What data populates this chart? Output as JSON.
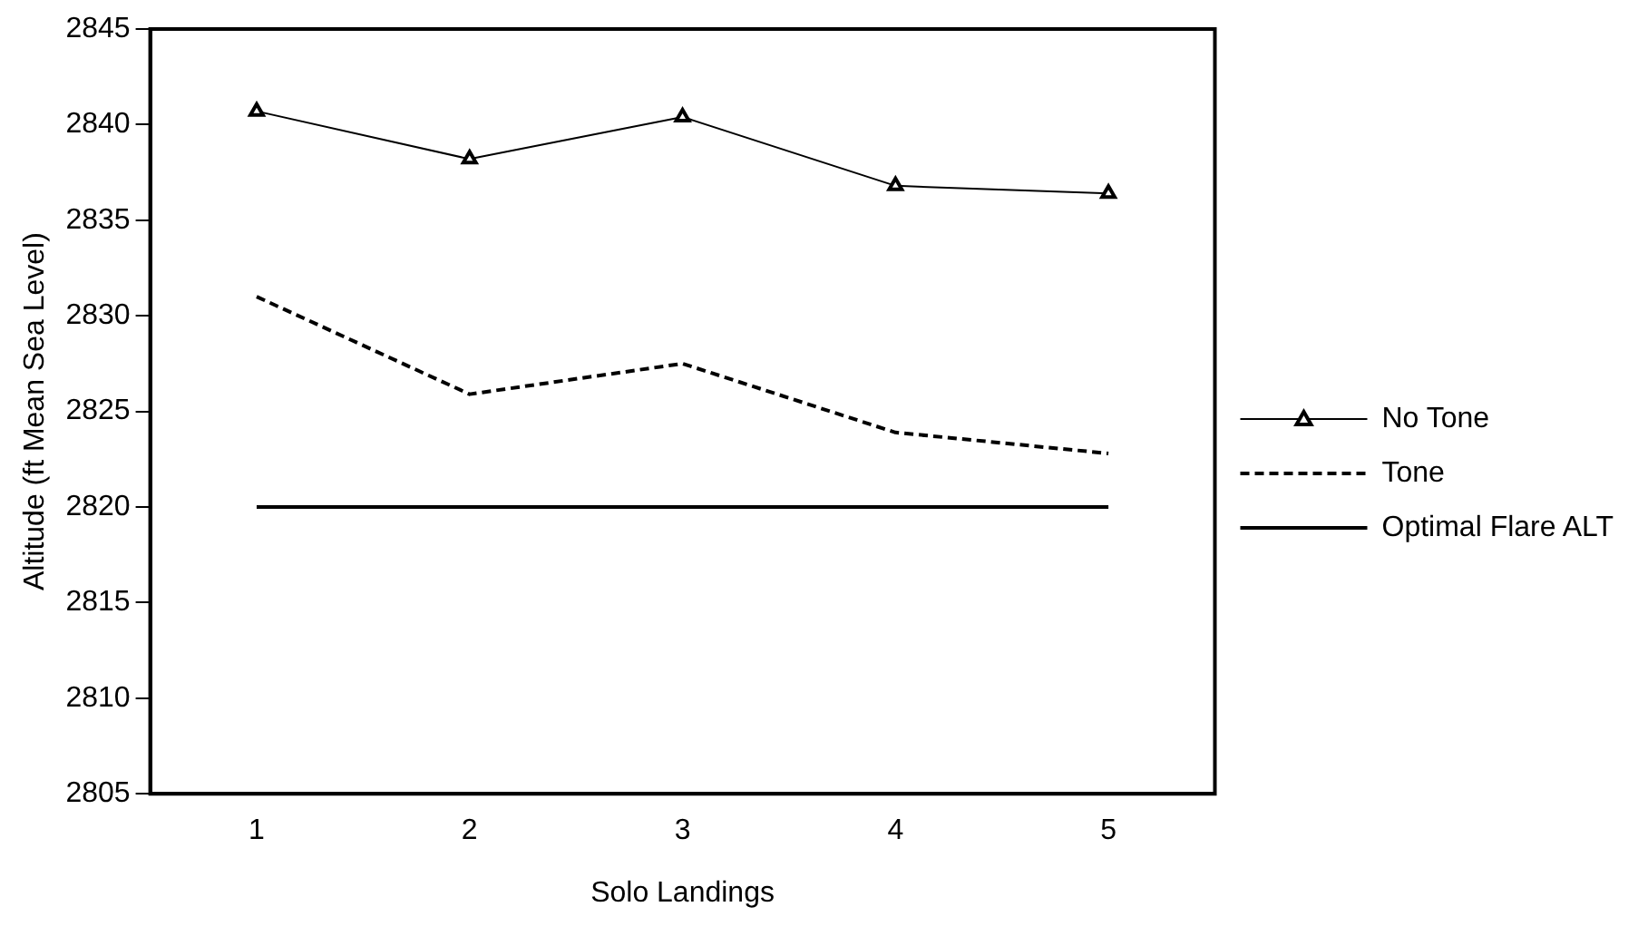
{
  "chart_data": {
    "type": "line",
    "xlabel": "Solo Landings",
    "ylabel": "Altitude (ft Mean Sea Level)",
    "categories": [
      "1",
      "2",
      "3",
      "4",
      "5"
    ],
    "ylim": [
      2805,
      2845
    ],
    "yticks": [
      2805,
      2810,
      2815,
      2820,
      2825,
      2830,
      2835,
      2840,
      2845
    ],
    "grid": false,
    "legend": "right",
    "series": [
      {
        "name": "No Tone",
        "color": "#000000",
        "marker": "triangle",
        "line_style": "solid",
        "values": [
          2840.7,
          2838.2,
          2840.4,
          2836.8,
          2836.4
        ]
      },
      {
        "name": "Tone",
        "color": "#000000",
        "marker": "none",
        "line_style": "dashed",
        "values": [
          2831.0,
          2825.9,
          2827.5,
          2823.9,
          2822.8
        ]
      },
      {
        "name": "Optimal Flare ALT",
        "color": "#000000",
        "marker": "none",
        "line_style": "solid",
        "values": [
          2820,
          2820,
          2820,
          2820,
          2820
        ]
      }
    ]
  }
}
